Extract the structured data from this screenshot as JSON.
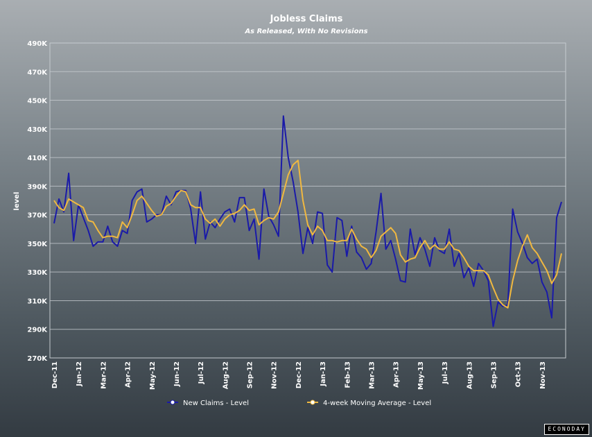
{
  "colors": {
    "new_claims": "#1a1aa8",
    "moving_average": "#f0b840",
    "grid": "#c5cbcf",
    "text": "#ffffff"
  },
  "watermark": "ECONODAY",
  "chart_data": {
    "type": "line",
    "title": "Jobless Claims",
    "subtitle": "As Released, With No Revisions",
    "ylabel": "level",
    "xlabel": "",
    "ylim": [
      270000,
      490000
    ],
    "yticks": [
      270000,
      290000,
      310000,
      330000,
      350000,
      370000,
      390000,
      410000,
      430000,
      450000,
      470000,
      490000
    ],
    "ytick_labels": [
      "270K",
      "290K",
      "310K",
      "330K",
      "350K",
      "370K",
      "390K",
      "410K",
      "430K",
      "450K",
      "470K",
      "490K"
    ],
    "x_tick_labels": [
      "Dec-11",
      "Jan-12",
      "Mar-12",
      "Apr-12",
      "May-12",
      "Jun-12",
      "Jul-12",
      "Aug-12",
      "Sep-12",
      "Nov-12",
      "Dec-12",
      "Jan-13",
      "Feb-13",
      "Mar-13",
      "Apr-13",
      "May-13",
      "Jul-13",
      "Aug-13",
      "Sep-13",
      "Oct-13",
      "Nov-13"
    ],
    "x_tick_weeks": [
      0,
      5,
      10,
      15,
      20,
      25,
      30,
      35,
      40,
      45,
      50,
      55,
      60,
      65,
      70,
      75,
      80,
      85,
      90,
      95,
      100
    ],
    "grid": true,
    "legend_position": "bottom",
    "series": [
      {
        "name": "New Claims - Level",
        "values": [
          364000,
          381000,
          372000,
          399000,
          352000,
          377000,
          368000,
          359000,
          348000,
          351000,
          351000,
          362000,
          351000,
          348000,
          359000,
          357000,
          380000,
          386000,
          388000,
          365000,
          367000,
          370000,
          370000,
          383000,
          377000,
          386000,
          387000,
          387000,
          374000,
          350000,
          386000,
          353000,
          365000,
          361000,
          367000,
          372000,
          374000,
          365000,
          382000,
          382000,
          359000,
          367000,
          339000,
          388000,
          369000,
          363000,
          355000,
          439000,
          410000,
          393000,
          372000,
          343000,
          361000,
          350000,
          372000,
          371000,
          335000,
          330000,
          368000,
          366000,
          341000,
          362000,
          344000,
          340000,
          332000,
          336000,
          358000,
          385000,
          346000,
          352000,
          339000,
          324000,
          323000,
          360000,
          342000,
          354000,
          346000,
          334000,
          354000,
          345000,
          343000,
          360000,
          334000,
          343000,
          326000,
          333000,
          320000,
          336000,
          331000,
          324000,
          292000,
          309000,
          306000,
          307000,
          374000,
          358000,
          350000,
          340000,
          336000,
          339000,
          323000,
          316000,
          298000,
          368000,
          379000
        ]
      },
      {
        "name": "4-week Moving Average - Level",
        "values": [
          380000,
          375000,
          373000,
          381000,
          379000,
          377000,
          375000,
          366000,
          365000,
          359000,
          354000,
          355000,
          355000,
          354000,
          365000,
          361000,
          370000,
          380000,
          383000,
          378000,
          373000,
          369000,
          370000,
          376000,
          378000,
          383000,
          387000,
          386000,
          377000,
          375000,
          375000,
          367000,
          364000,
          367000,
          362000,
          367000,
          370000,
          371000,
          373000,
          377000,
          373000,
          374000,
          363000,
          366000,
          368000,
          367000,
          372000,
          385000,
          398000,
          405000,
          408000,
          380000,
          363000,
          356000,
          362000,
          359000,
          352000,
          352000,
          351000,
          352000,
          352000,
          360000,
          353000,
          348000,
          346000,
          340000,
          345000,
          355000,
          358000,
          361000,
          357000,
          342000,
          337000,
          339000,
          340000,
          347000,
          352000,
          346000,
          349000,
          346000,
          346000,
          351000,
          346000,
          345000,
          340000,
          334000,
          331000,
          331000,
          331000,
          328000,
          319000,
          311000,
          307000,
          305000,
          324000,
          338000,
          348000,
          356000,
          347000,
          343000,
          337000,
          331000,
          322000,
          328000,
          343000
        ]
      }
    ]
  }
}
